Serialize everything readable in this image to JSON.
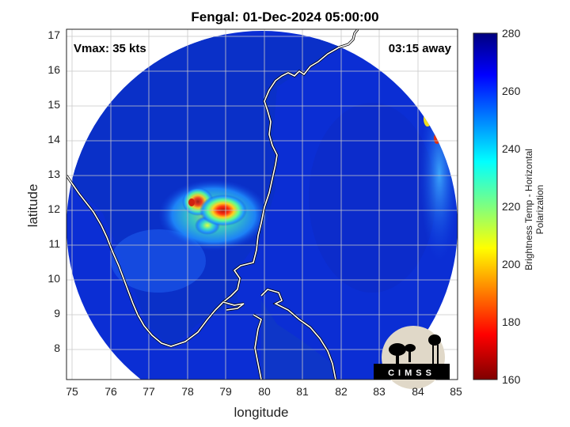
{
  "title": "Fengal: 01-Dec-2024 05:00:00",
  "vmax_label": "Vmax: 35 kts",
  "time_label": "03:15 away",
  "logo_text": "CIMSS",
  "colors": {
    "background_blue": "#0a2fd0",
    "coastline": "#ffffff",
    "core": "#d42010"
  },
  "chart_data": {
    "type": "heatmap",
    "title": "Fengal: 01-Dec-2024 05:00:00",
    "xlabel": "longitude",
    "ylabel": "latitude",
    "xlim": [
      74.8,
      85
    ],
    "ylim": [
      7.2,
      17.2
    ],
    "xticks": [
      "75",
      "76",
      "77",
      "78",
      "79",
      "80",
      "81",
      "82",
      "83",
      "84",
      "85"
    ],
    "yticks": [
      "8",
      "9",
      "10",
      "11",
      "12",
      "13",
      "14",
      "15",
      "16",
      "17"
    ],
    "grid": true,
    "colorbar": {
      "label": "Brightness Temp - Horizontal Polarization",
      "min": 160,
      "max": 280,
      "ticks": [
        "280",
        "260",
        "240",
        "220",
        "200",
        "180",
        "160"
      ],
      "colormap": "jet"
    },
    "features": [
      {
        "name": "storm-core",
        "lon": 78.9,
        "lat": 12.0,
        "value": 170
      },
      {
        "name": "cloud-band",
        "lon": 78.5,
        "lat": 12.0,
        "value": 215
      }
    ]
  }
}
